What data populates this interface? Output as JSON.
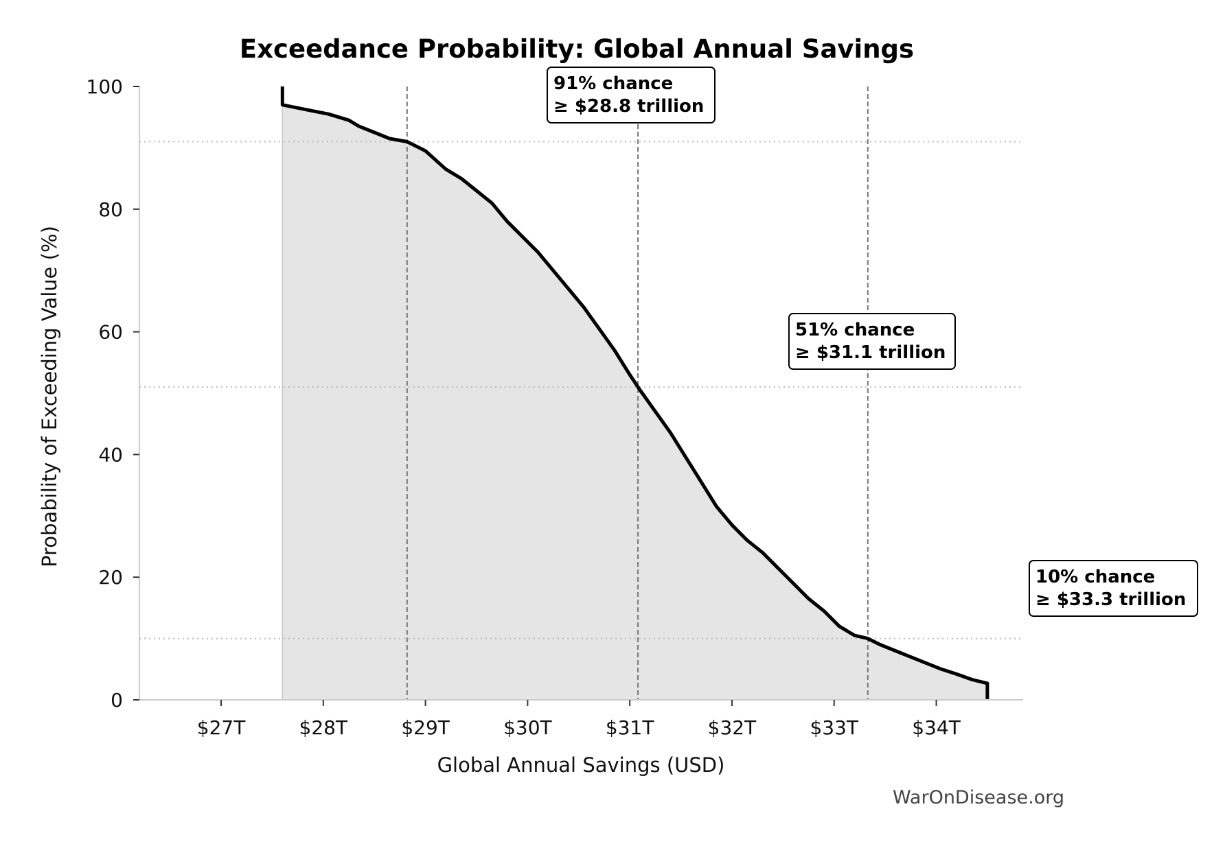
{
  "chart_data": {
    "type": "area",
    "title": "Exceedance Probability: Global Annual Savings",
    "xlabel": "Global Annual Savings (USD)",
    "ylabel": "Probability of Exceeding Value (%)",
    "xlim": [
      26.2,
      34.85
    ],
    "ylim": [
      0,
      100
    ],
    "x_ticks": [
      27,
      28,
      29,
      30,
      31,
      32,
      33,
      34
    ],
    "x_tick_labels": [
      "$27T",
      "$28T",
      "$29T",
      "$30T",
      "$31T",
      "$32T",
      "$33T",
      "$34T"
    ],
    "y_ticks": [
      0,
      20,
      40,
      60,
      80,
      100
    ],
    "y_tick_labels": [
      "0",
      "20",
      "40",
      "60",
      "80",
      "100"
    ],
    "series": [
      {
        "x": [
          27.6,
          27.6,
          27.6,
          27.75,
          27.9,
          28.05,
          28.15,
          28.25,
          28.35,
          28.5,
          28.65,
          28.82,
          29.0,
          29.1,
          29.2,
          29.35,
          29.5,
          29.65,
          29.8,
          29.95,
          30.1,
          30.25,
          30.4,
          30.55,
          30.7,
          30.85,
          31.0,
          31.1,
          31.25,
          31.4,
          31.55,
          31.7,
          31.85,
          32.0,
          32.15,
          32.3,
          32.45,
          32.6,
          32.75,
          32.9,
          33.05,
          33.2,
          33.33,
          33.45,
          33.6,
          33.75,
          33.9,
          34.05,
          34.2,
          34.35,
          34.5,
          34.5
        ],
        "y": [
          100,
          97.5,
          97.0,
          96.5,
          96.0,
          95.5,
          95.0,
          94.5,
          93.5,
          92.5,
          91.5,
          91.0,
          89.5,
          88.0,
          86.5,
          85.0,
          83.0,
          81.0,
          78.0,
          75.5,
          73.0,
          70.0,
          67.0,
          64.0,
          60.5,
          57.0,
          53.0,
          50.5,
          47.0,
          43.5,
          39.5,
          35.5,
          31.5,
          28.5,
          26.0,
          24.0,
          21.5,
          19.0,
          16.5,
          14.5,
          12.0,
          10.5,
          10.0,
          9.0,
          8.0,
          7.0,
          6.0,
          5.0,
          4.2,
          3.3,
          2.7,
          0
        ]
      }
    ],
    "reference_lines": {
      "vertical": [
        28.82,
        31.08,
        33.33
      ],
      "horizontal": [
        91,
        51,
        10
      ]
    },
    "annotations": [
      {
        "line1": "91% chance",
        "line2": "≥ $28.8 trillion"
      },
      {
        "line1": "51% chance",
        "line2": "≥ $31.1 trillion"
      },
      {
        "line1": "10% chance",
        "line2": "≥ $33.3 trillion"
      }
    ],
    "grid": false,
    "watermark": "WarOnDisease.org",
    "colors": {
      "line": "#000000",
      "fill": "#e5e5e5",
      "ref_vertical": "#777777",
      "ref_horizontal": "#bbbbbb",
      "axis": "#cccccc"
    }
  }
}
